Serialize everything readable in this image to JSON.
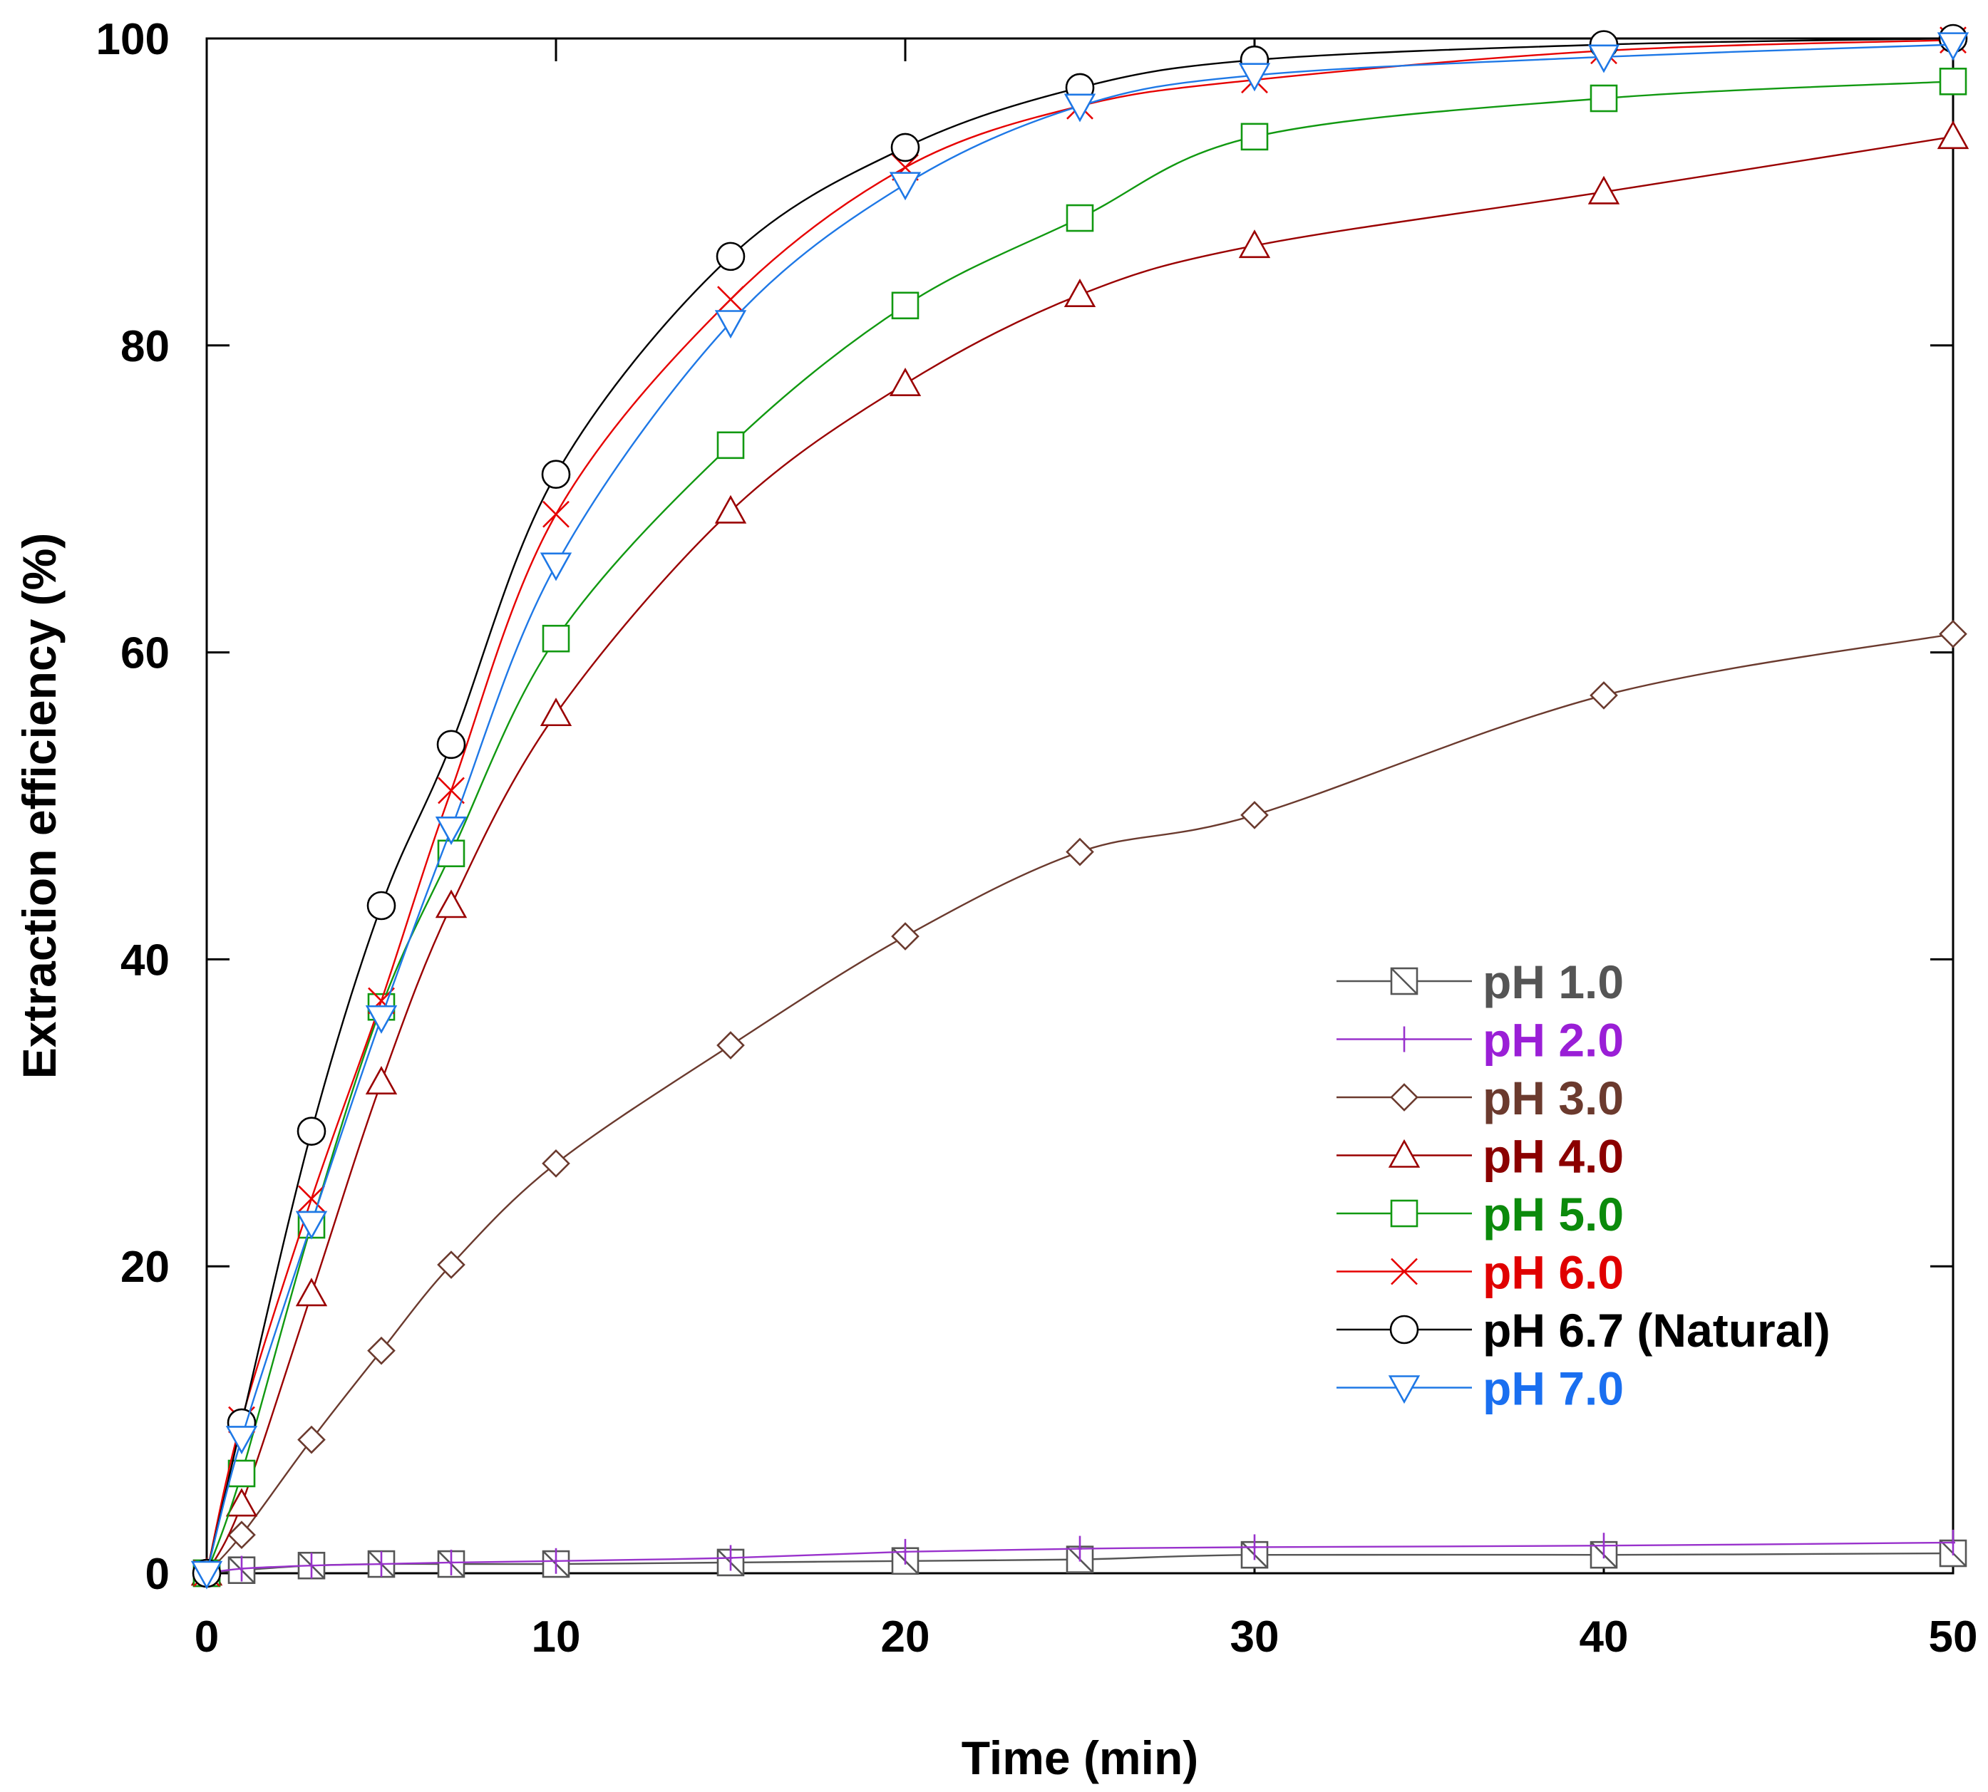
{
  "chart_data": {
    "type": "line",
    "title": "",
    "xlabel": "Time (min)",
    "ylabel": "Extraction efficiency (%)",
    "xlim": [
      0,
      50
    ],
    "ylim": [
      0,
      100
    ],
    "xticks": [
      0,
      10,
      20,
      30,
      40,
      50
    ],
    "yticks": [
      0,
      20,
      40,
      60,
      80,
      100
    ],
    "xtick_labels": [
      "0",
      "10",
      "20",
      "30",
      "40",
      "50"
    ],
    "ytick_labels": [
      "0",
      "20",
      "40",
      "60",
      "80",
      "100"
    ],
    "grid": false,
    "legend_position": "lower-right",
    "x": [
      0,
      1,
      3,
      5,
      7,
      10,
      15,
      20,
      25,
      30,
      40,
      50
    ],
    "series": [
      {
        "name": "pH 1.0",
        "color": "#555555",
        "text_color": "#555555",
        "marker": "square-slash",
        "values": [
          0,
          0.2,
          0.5,
          0.6,
          0.6,
          0.6,
          0.7,
          0.8,
          0.9,
          1.2,
          1.2,
          1.3
        ]
      },
      {
        "name": "pH 2.0",
        "color": "#9932cc",
        "text_color": "#9a1fd6",
        "marker": "plus",
        "values": [
          0,
          0.3,
          0.5,
          0.6,
          0.7,
          0.8,
          1.0,
          1.4,
          1.6,
          1.7,
          1.8,
          2.0
        ]
      },
      {
        "name": "pH 3.0",
        "color": "#6b3a2e",
        "text_color": "#6b3a2e",
        "marker": "diamond",
        "values": [
          0,
          2.5,
          8.7,
          14.5,
          20.1,
          26.7,
          34.4,
          41.5,
          47.0,
          49.4,
          57.2,
          61.2
        ]
      },
      {
        "name": "pH 4.0",
        "color": "#9a0000",
        "text_color": "#8b0000",
        "marker": "triangle-up",
        "values": [
          0,
          4.5,
          18.2,
          32.0,
          43.5,
          56.0,
          69.2,
          77.5,
          83.3,
          86.5,
          90.0,
          93.6
        ]
      },
      {
        "name": "pH 5.0",
        "color": "#119911",
        "text_color": "#0b8a0b",
        "marker": "square",
        "values": [
          0,
          6.5,
          22.7,
          36.9,
          46.9,
          60.9,
          73.5,
          82.6,
          88.3,
          93.6,
          96.1,
          97.2
        ]
      },
      {
        "name": "pH 6.0",
        "color": "#e60000",
        "text_color": "#e00000",
        "marker": "x",
        "values": [
          0,
          10.0,
          24.4,
          37.3,
          51.0,
          69.0,
          83.0,
          91.6,
          95.6,
          97.3,
          99.2,
          99.9
        ]
      },
      {
        "name": "pH 6.7 (Natural)",
        "color": "#000000",
        "text_color": "#000000",
        "marker": "circle",
        "values": [
          0,
          9.8,
          28.8,
          43.5,
          54.0,
          71.6,
          85.8,
          92.9,
          96.8,
          98.6,
          99.6,
          100.0
        ]
      },
      {
        "name": "pH 7.0",
        "color": "#1e78e6",
        "text_color": "#1a6ff0",
        "marker": "triangle-down",
        "values": [
          0,
          8.8,
          22.8,
          36.2,
          48.5,
          65.7,
          81.5,
          90.5,
          95.6,
          97.6,
          98.8,
          99.6
        ]
      }
    ]
  }
}
